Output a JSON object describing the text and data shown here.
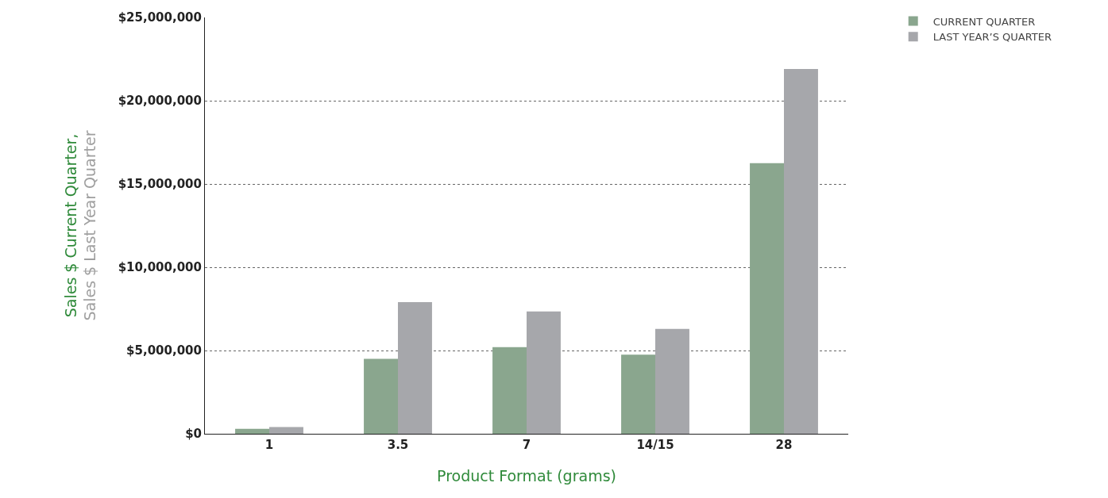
{
  "chart_data": {
    "type": "bar",
    "xlabel": "Product Format (grams)",
    "ylabel": "Sales $ Current Quarter,\nSales $ Last Year Quarter",
    "categories": [
      "1",
      "3.5",
      "7",
      "14/15",
      "28"
    ],
    "series": [
      {
        "name": "CURRENT QUARTER",
        "color": "#8aa68e",
        "values": [
          300000,
          4500000,
          5200000,
          4750000,
          16250000
        ]
      },
      {
        "name": "LAST YEAR’S QUARTER",
        "color": "#a6a7ab",
        "values": [
          400000,
          7900000,
          7350000,
          6300000,
          21900000
        ]
      }
    ],
    "ylim": [
      0,
      25000000
    ],
    "yticks": [
      {
        "value": 0,
        "label": "$0"
      },
      {
        "value": 5000000,
        "label": "$5,000,000"
      },
      {
        "value": 10000000,
        "label": "$10,000,000"
      },
      {
        "value": 15000000,
        "label": "$15,000,000"
      },
      {
        "value": 20000000,
        "label": "$20,000,000"
      },
      {
        "value": 25000000,
        "label": "$25,000,000"
      }
    ],
    "grid": "y",
    "legend": "top right"
  }
}
